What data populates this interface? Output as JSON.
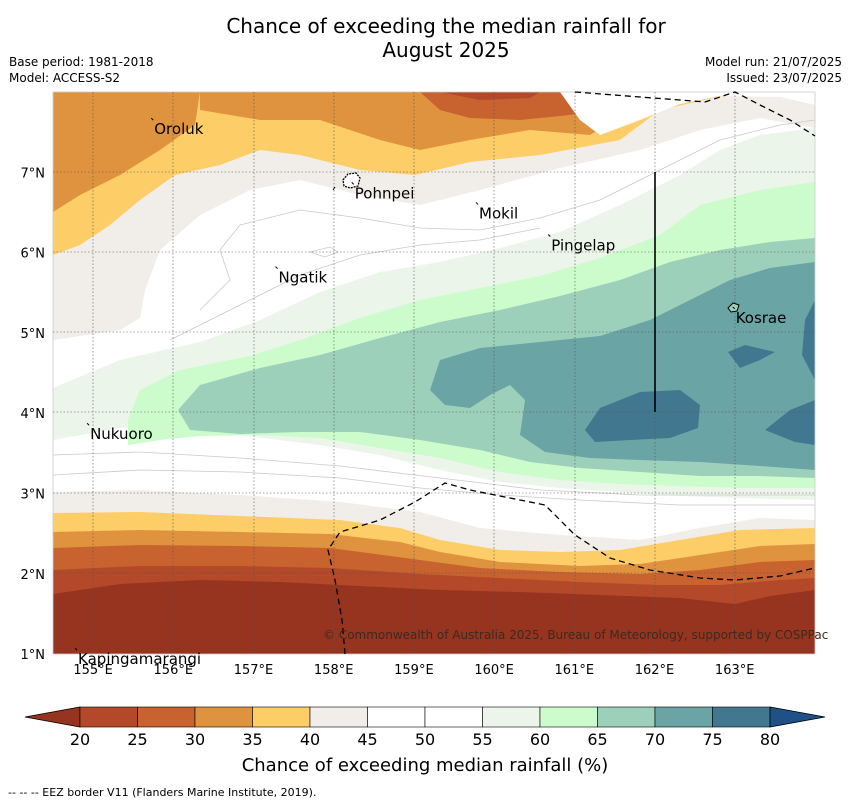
{
  "title": {
    "line1": "Chance of exceeding the median rainfall for",
    "line2": "August 2025"
  },
  "meta": {
    "base_period": "Base period: 1981-2018",
    "model": "Model: ACCESS-S2",
    "model_run": "Model run: 21/07/2025",
    "issued": "Issued: 23/07/2025"
  },
  "map": {
    "lon_ticks": [
      "155°E",
      "156°E",
      "157°E",
      "158°E",
      "159°E",
      "160°E",
      "161°E",
      "162°E",
      "163°E"
    ],
    "lat_ticks": [
      "7°N",
      "6°N",
      "5°N",
      "4°N",
      "3°N",
      "2°N",
      "1°N"
    ],
    "places": [
      {
        "name": "Oroluk",
        "lon": 155.75,
        "lat": 7.65
      },
      {
        "name": "Pohnpei",
        "lon": 158.25,
        "lat": 6.85
      },
      {
        "name": "Mokil",
        "lon": 159.8,
        "lat": 6.6
      },
      {
        "name": "Pingelap",
        "lon": 160.7,
        "lat": 6.2
      },
      {
        "name": "Ngatik",
        "lon": 157.3,
        "lat": 5.8
      },
      {
        "name": "Kosrae",
        "lon": 163.0,
        "lat": 5.3
      },
      {
        "name": "Nukuoro",
        "lon": 154.95,
        "lat": 3.85
      },
      {
        "name": "Kapingamarangi",
        "lon": 154.8,
        "lat": 1.05
      }
    ],
    "copyright": "© Commonwealth of Australia 2025, Bureau of Meteorology, supported by COSPPac"
  },
  "colorbar": {
    "ticks": [
      "20",
      "25",
      "30",
      "35",
      "40",
      "45",
      "50",
      "55",
      "60",
      "65",
      "70",
      "75",
      "80"
    ],
    "colors": [
      "#b4492a",
      "#c8622f",
      "#e0933f",
      "#fdcd68",
      "#f1ede8",
      "#ffffff",
      "#ffffff",
      "#ebf5ea",
      "#ccfccc",
      "#9dd0bb",
      "#6aa4a5",
      "#41788f"
    ],
    "under_color": "#97341f",
    "over_color": "#1f5187",
    "label": "Chance of exceeding median rainfall (%)"
  },
  "footnote": "--  --  -- EEZ border V11 (Flanders Marine Institute, 2019)."
}
